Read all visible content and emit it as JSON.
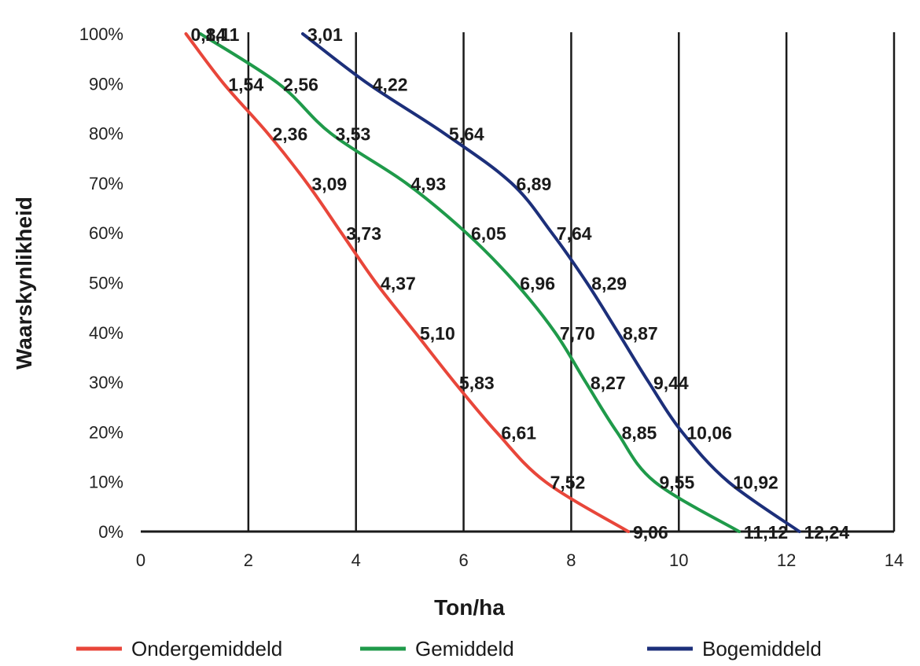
{
  "chart_data": {
    "type": "line",
    "title": "",
    "xlabel": "Ton/ha",
    "ylabel": "Waarskynlikheid",
    "xlim": [
      0,
      14
    ],
    "ylim": [
      0,
      100
    ],
    "x_ticks": [
      "0",
      "2",
      "4",
      "6",
      "8",
      "10",
      "12",
      "14"
    ],
    "y_ticks": [
      "0%",
      "10%",
      "20%",
      "30%",
      "40%",
      "50%",
      "60%",
      "70%",
      "80%",
      "90%",
      "100%"
    ],
    "grid": "vertical",
    "legend_position": "bottom",
    "series": [
      {
        "name": "Ondergemiddeld",
        "color": "#e8463a",
        "points": [
          {
            "x": 0.84,
            "y": 100,
            "label": "0,84"
          },
          {
            "x": 1.54,
            "y": 90,
            "label": "1,54"
          },
          {
            "x": 2.36,
            "y": 80,
            "label": "2,36"
          },
          {
            "x": 3.09,
            "y": 70,
            "label": "3,09"
          },
          {
            "x": 3.73,
            "y": 60,
            "label": "3,73"
          },
          {
            "x": 4.37,
            "y": 50,
            "label": "4,37"
          },
          {
            "x": 5.1,
            "y": 40,
            "label": "5,10"
          },
          {
            "x": 5.83,
            "y": 30,
            "label": "5,83"
          },
          {
            "x": 6.61,
            "y": 20,
            "label": "6,61"
          },
          {
            "x": 7.52,
            "y": 10,
            "label": "7,52"
          },
          {
            "x": 9.06,
            "y": 0,
            "label": "9,06"
          }
        ]
      },
      {
        "name": "Gemiddeld",
        "color": "#1f9a4a",
        "points": [
          {
            "x": 1.11,
            "y": 100,
            "label": "1,11"
          },
          {
            "x": 2.56,
            "y": 90,
            "label": "2,56"
          },
          {
            "x": 3.53,
            "y": 80,
            "label": "3,53"
          },
          {
            "x": 4.93,
            "y": 70,
            "label": "4,93"
          },
          {
            "x": 6.05,
            "y": 60,
            "label": "6,05"
          },
          {
            "x": 6.96,
            "y": 50,
            "label": "6,96"
          },
          {
            "x": 7.7,
            "y": 40,
            "label": "7,70"
          },
          {
            "x": 8.27,
            "y": 30,
            "label": "8,27"
          },
          {
            "x": 8.85,
            "y": 20,
            "label": "8,85"
          },
          {
            "x": 9.55,
            "y": 10,
            "label": "9,55"
          },
          {
            "x": 11.12,
            "y": 0,
            "label": "11,12"
          }
        ]
      },
      {
        "name": "Bogemiddeld",
        "color": "#1c2f7a",
        "points": [
          {
            "x": 3.01,
            "y": 100,
            "label": "3,01"
          },
          {
            "x": 4.22,
            "y": 90,
            "label": "4,22"
          },
          {
            "x": 5.64,
            "y": 80,
            "label": "5,64"
          },
          {
            "x": 6.89,
            "y": 70,
            "label": "6,89"
          },
          {
            "x": 7.64,
            "y": 60,
            "label": "7,64"
          },
          {
            "x": 8.29,
            "y": 50,
            "label": "8,29"
          },
          {
            "x": 8.87,
            "y": 40,
            "label": "8,87"
          },
          {
            "x": 9.44,
            "y": 30,
            "label": "9,44"
          },
          {
            "x": 10.06,
            "y": 20,
            "label": "10,06"
          },
          {
            "x": 10.92,
            "y": 10,
            "label": "10,92"
          },
          {
            "x": 12.24,
            "y": 0,
            "label": "12,24"
          }
        ]
      }
    ]
  }
}
